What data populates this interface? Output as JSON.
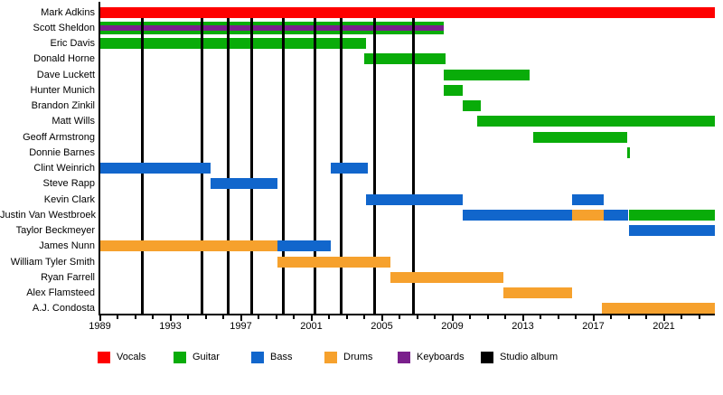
{
  "chart_data": {
    "type": "timeline",
    "subject": "Band members timeline (Gantt-style tenure chart)",
    "x_axis": {
      "start": 1989,
      "end": 2023.9,
      "labels": [
        "1989",
        "1993",
        "1997",
        "2001",
        "2005",
        "2009",
        "2013",
        "2017",
        "2021"
      ],
      "label_years": [
        1989,
        1993,
        1997,
        2001,
        2005,
        2009,
        2013,
        2017,
        2021
      ],
      "minor_tick_every_years": 1,
      "grid": "off"
    },
    "colors": {
      "Vocals": "#fe0000",
      "Guitar": "#09ac09",
      "Bass": "#1166cc",
      "Drums": "#f6a12d",
      "Keyboards": "#7a1f8c",
      "Studio album": "#000000"
    },
    "legend": [
      {
        "label": "Vocals"
      },
      {
        "label": "Guitar"
      },
      {
        "label": "Bass"
      },
      {
        "label": "Drums"
      },
      {
        "label": "Keyboards"
      },
      {
        "label": "Studio album"
      }
    ],
    "album_release_years": [
      1991.4,
      1994.8,
      1996.3,
      1997.6,
      1999.4,
      2001.2,
      2002.7,
      2004.6,
      2006.8
    ],
    "members": [
      {
        "name": "Mark Adkins",
        "segments": [
          {
            "role": "Vocals",
            "start": 1989,
            "end": 2023.9
          }
        ]
      },
      {
        "name": "Scott Sheldon",
        "segments": [
          {
            "role": "Guitar",
            "start": 1989,
            "end": 2008.5
          }
        ],
        "keyboards_overlay": {
          "role": "Keyboards",
          "start": 1989,
          "end": 2008.5
        }
      },
      {
        "name": "Eric Davis",
        "segments": [
          {
            "role": "Guitar",
            "start": 1989,
            "end": 2004.1
          }
        ]
      },
      {
        "name": "Donald Horne",
        "segments": [
          {
            "role": "Guitar",
            "start": 2004.0,
            "end": 2008.6
          }
        ]
      },
      {
        "name": "Dave Luckett",
        "segments": [
          {
            "role": "Guitar",
            "start": 2008.5,
            "end": 2013.4
          }
        ]
      },
      {
        "name": "Hunter Munich",
        "segments": [
          {
            "role": "Guitar",
            "start": 2008.5,
            "end": 2009.6
          }
        ]
      },
      {
        "name": "Brandon Zinkil",
        "segments": [
          {
            "role": "Guitar",
            "start": 2009.6,
            "end": 2010.6
          }
        ]
      },
      {
        "name": "Matt Wills",
        "segments": [
          {
            "role": "Guitar",
            "start": 2010.4,
            "end": 2023.9
          }
        ]
      },
      {
        "name": "Geoff Armstrong",
        "segments": [
          {
            "role": "Guitar",
            "start": 2013.6,
            "end": 2018.9
          }
        ]
      },
      {
        "name": "Donnie Barnes",
        "segments": [
          {
            "role": "Guitar",
            "start": 2018.9,
            "end": 2019.1
          }
        ]
      },
      {
        "name": "Clint Weinrich",
        "segments": [
          {
            "role": "Bass",
            "start": 1989,
            "end": 1995.3
          },
          {
            "role": "Bass",
            "start": 2002.1,
            "end": 2004.2
          }
        ]
      },
      {
        "name": "Steve Rapp",
        "segments": [
          {
            "role": "Bass",
            "start": 1995.3,
            "end": 1999.1
          }
        ]
      },
      {
        "name": "Kevin Clark",
        "segments": [
          {
            "role": "Bass",
            "start": 2004.1,
            "end": 2009.6
          },
          {
            "role": "Bass",
            "start": 2015.8,
            "end": 2017.6
          }
        ]
      },
      {
        "name": "Justin Van Westbroek",
        "segments": [
          {
            "role": "Bass",
            "start": 2009.6,
            "end": 2015.8
          },
          {
            "role": "Drums",
            "start": 2015.8,
            "end": 2017.6
          },
          {
            "role": "Bass",
            "start": 2017.6,
            "end": 2019.0
          },
          {
            "role": "Guitar",
            "start": 2019.0,
            "end": 2023.9
          }
        ]
      },
      {
        "name": "Taylor Beckmeyer",
        "segments": [
          {
            "role": "Bass",
            "start": 2019.0,
            "end": 2023.9
          }
        ]
      },
      {
        "name": "James Nunn",
        "segments": [
          {
            "role": "Drums",
            "start": 1989,
            "end": 1999.1
          },
          {
            "role": "Bass",
            "start": 1999.1,
            "end": 2002.1
          }
        ]
      },
      {
        "name": "William Tyler Smith",
        "segments": [
          {
            "role": "Drums",
            "start": 1999.1,
            "end": 2005.5
          }
        ]
      },
      {
        "name": "Ryan Farrell",
        "segments": [
          {
            "role": "Drums",
            "start": 2005.5,
            "end": 2011.9
          }
        ]
      },
      {
        "name": "Alex Flamsteed",
        "segments": [
          {
            "role": "Drums",
            "start": 2011.9,
            "end": 2015.8
          }
        ]
      },
      {
        "name": "A.J. Condosta",
        "segments": [
          {
            "role": "Drums",
            "start": 2017.5,
            "end": 2023.9
          }
        ]
      }
    ]
  }
}
